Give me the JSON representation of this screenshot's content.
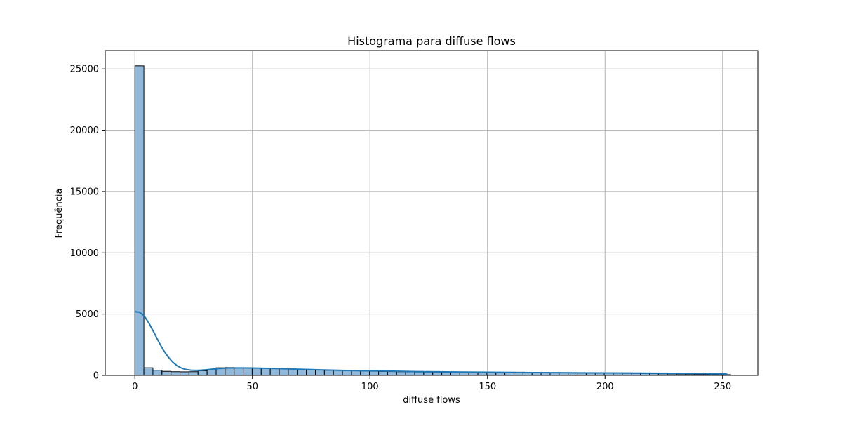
{
  "chart_data": {
    "type": "bar",
    "title": "Histograma para diffuse flows",
    "xlabel": "diffuse flows",
    "ylabel": "Frequência",
    "xlim": [
      -12.6,
      265.0
    ],
    "ylim": [
      0,
      26500
    ],
    "grid": true,
    "xticks": [
      0,
      50,
      100,
      150,
      200,
      250
    ],
    "yticks": [
      0,
      5000,
      10000,
      15000,
      20000,
      25000
    ],
    "bin_width": 3.84,
    "bin_start": 0.0,
    "bin_counts": [
      25250,
      620,
      420,
      330,
      300,
      290,
      300,
      380,
      440,
      620,
      640,
      630,
      620,
      600,
      590,
      570,
      540,
      510,
      480,
      460,
      430,
      410,
      400,
      390,
      380,
      360,
      340,
      320,
      310,
      300,
      290,
      280,
      275,
      270,
      265,
      260,
      255,
      250,
      245,
      240,
      235,
      230,
      225,
      220,
      215,
      210,
      205,
      200,
      195,
      190,
      185,
      180,
      175,
      170,
      165,
      160,
      150,
      140,
      130,
      120,
      110,
      100,
      90,
      80,
      70,
      60
    ],
    "kde": {
      "x": [
        0,
        2,
        4,
        6,
        8,
        10,
        12,
        14,
        16,
        18,
        20,
        22,
        24,
        26,
        28,
        30,
        32,
        34,
        36,
        38,
        40,
        45,
        50,
        55,
        60,
        70,
        80,
        90,
        100,
        110,
        120,
        130,
        140,
        150,
        160,
        170,
        180,
        190,
        200,
        210,
        220,
        230,
        240,
        250,
        252
      ],
      "y": [
        5200,
        5150,
        4850,
        4250,
        3550,
        2800,
        2100,
        1550,
        1100,
        780,
        580,
        470,
        420,
        410,
        420,
        450,
        490,
        530,
        560,
        580,
        600,
        610,
        600,
        580,
        560,
        500,
        440,
        400,
        370,
        340,
        310,
        290,
        270,
        255,
        240,
        230,
        220,
        210,
        200,
        190,
        180,
        170,
        150,
        120,
        110
      ]
    },
    "colors": {
      "bar_fill": "#8fb8da",
      "bar_edge": "#000000",
      "kde_line": "#1f77b4",
      "grid": "#b0b0b0"
    }
  }
}
